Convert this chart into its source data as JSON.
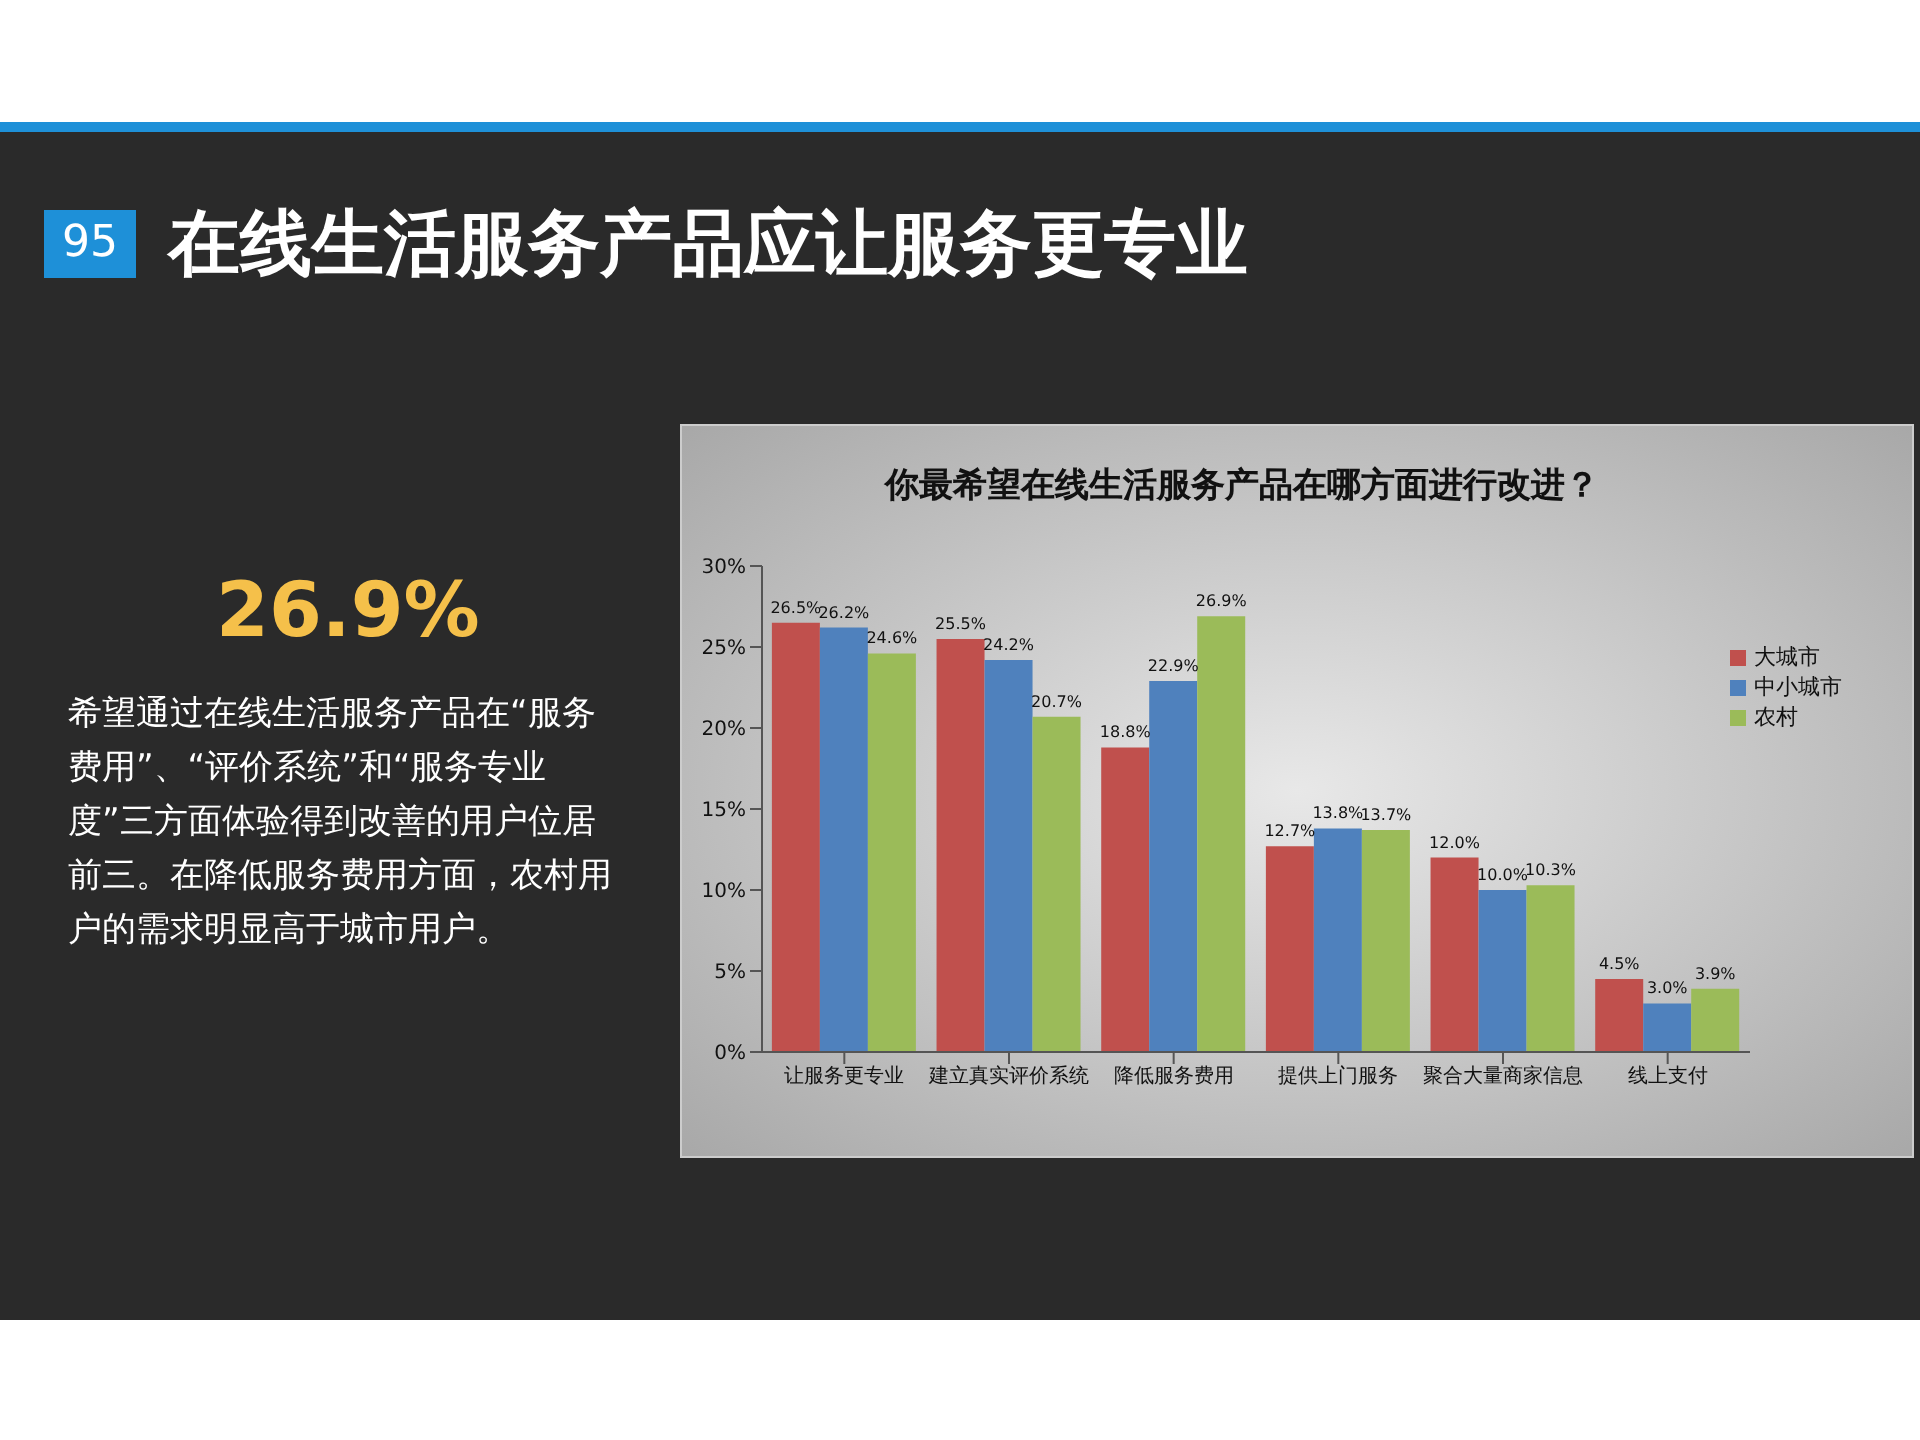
{
  "chart_data": {
    "type": "bar",
    "title": "你最希望在线生活服务产品在哪方面进行改进？",
    "annotations": [
      "95",
      "在线生活服务产品应让服务更专业",
      "26.9%",
      "希望通过在线生活服务产品在“服务费用”、“评价系统”和“服务专业度”三方面体验得到改善的用户位居前三。在降低服务费用方面，农村用户的需求明显高于城市用户。"
    ],
    "categories": [
      "让服务更专业",
      "建立真实评价系统",
      "降低服务费用",
      "提供上门服务",
      "聚合大量商家信息",
      "线上支付"
    ],
    "series": [
      {
        "name": "大城市",
        "color": "#c0504d",
        "values": [
          26.5,
          25.5,
          18.8,
          12.7,
          12.0,
          4.5
        ],
        "value_labels": [
          "26.5%",
          "25.5%",
          "18.8%",
          "12.7%",
          "12.0%",
          "4.5%"
        ]
      },
      {
        "name": "中小城市",
        "color": "#4f81bd",
        "values": [
          26.2,
          24.2,
          22.9,
          13.8,
          10.0,
          3.0
        ],
        "value_labels": [
          "26.2%",
          "24.2%",
          "22.9%",
          "13.8%",
          "10.0%",
          "3.0%"
        ]
      },
      {
        "name": "农村",
        "color": "#9bbb59",
        "values": [
          24.6,
          20.7,
          26.9,
          13.7,
          10.3,
          3.9
        ],
        "value_labels": [
          "24.6%",
          "20.7%",
          "26.9%",
          "13.7%",
          "10.3%",
          "3.9%"
        ]
      }
    ],
    "ylim": [
      0,
      30
    ],
    "yticks": [
      {
        "value": 0,
        "label": "0%"
      },
      {
        "value": 5,
        "label": "5%"
      },
      {
        "value": 10,
        "label": "10%"
      },
      {
        "value": 15,
        "label": "15%"
      },
      {
        "value": 20,
        "label": "20%"
      },
      {
        "value": 25,
        "label": "25%"
      },
      {
        "value": 30,
        "label": "30%"
      }
    ],
    "grid": false,
    "legend": "right"
  }
}
